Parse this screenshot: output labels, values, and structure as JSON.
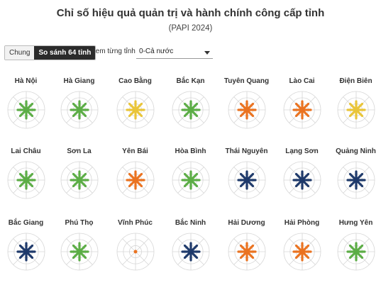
{
  "header": {
    "title": "Chỉ số hiệu quả quản trị và hành chính công cấp tỉnh",
    "subtitle": "(PAPI 2024)"
  },
  "controls": {
    "toggle": [
      "Chung",
      "So sánh 64 tỉnh"
    ],
    "active_toggle": "So sánh 64 tỉnh",
    "view_label": "Xem từng tỉnh",
    "select_value": "0-Cả nước"
  },
  "colors": {
    "green": "#5cad46",
    "yellow": "#e9c53a",
    "orange": "#ea7321",
    "navy": "#1f3a6b",
    "grid": "#d6d6d6"
  },
  "provinces": [
    {
      "name": "Hà Nội",
      "color": "green",
      "icon": "radar-star-icon"
    },
    {
      "name": "Hà Giang",
      "color": "green",
      "icon": "radar-star-icon"
    },
    {
      "name": "Cao Bằng",
      "color": "yellow",
      "icon": "radar-star-icon"
    },
    {
      "name": "Bắc Kạn",
      "color": "green",
      "icon": "radar-star-icon"
    },
    {
      "name": "Tuyên Quang",
      "color": "orange",
      "icon": "radar-star-icon"
    },
    {
      "name": "Lào Cai",
      "color": "orange",
      "icon": "radar-star-icon"
    },
    {
      "name": "Điện Biên",
      "color": "yellow",
      "icon": "radar-star-icon"
    },
    {
      "name": "Lai Châu",
      "color": "green",
      "icon": "radar-star-icon"
    },
    {
      "name": "Sơn La",
      "color": "green",
      "icon": "radar-star-icon"
    },
    {
      "name": "Yên Bái",
      "color": "orange",
      "icon": "radar-star-icon"
    },
    {
      "name": "Hòa Bình",
      "color": "green",
      "icon": "radar-star-icon"
    },
    {
      "name": "Thái Nguyên",
      "color": "navy",
      "icon": "radar-star-icon"
    },
    {
      "name": "Lạng Sơn",
      "color": "navy",
      "icon": "radar-star-icon"
    },
    {
      "name": "Quảng Ninh",
      "color": "navy",
      "icon": "radar-star-icon"
    },
    {
      "name": "Bắc Giang",
      "color": "navy",
      "icon": "radar-star-icon"
    },
    {
      "name": "Phú Thọ",
      "color": "green",
      "icon": "radar-star-icon"
    },
    {
      "name": "Vĩnh Phúc",
      "color": "orange",
      "icon": "radar-dot-icon"
    },
    {
      "name": "Bắc Ninh",
      "color": "navy",
      "icon": "radar-star-icon"
    },
    {
      "name": "Hải Dương",
      "color": "orange",
      "icon": "radar-star-icon"
    },
    {
      "name": "Hải Phòng",
      "color": "orange",
      "icon": "radar-star-icon"
    },
    {
      "name": "Hưng Yên",
      "color": "green",
      "icon": "radar-star-icon"
    }
  ]
}
